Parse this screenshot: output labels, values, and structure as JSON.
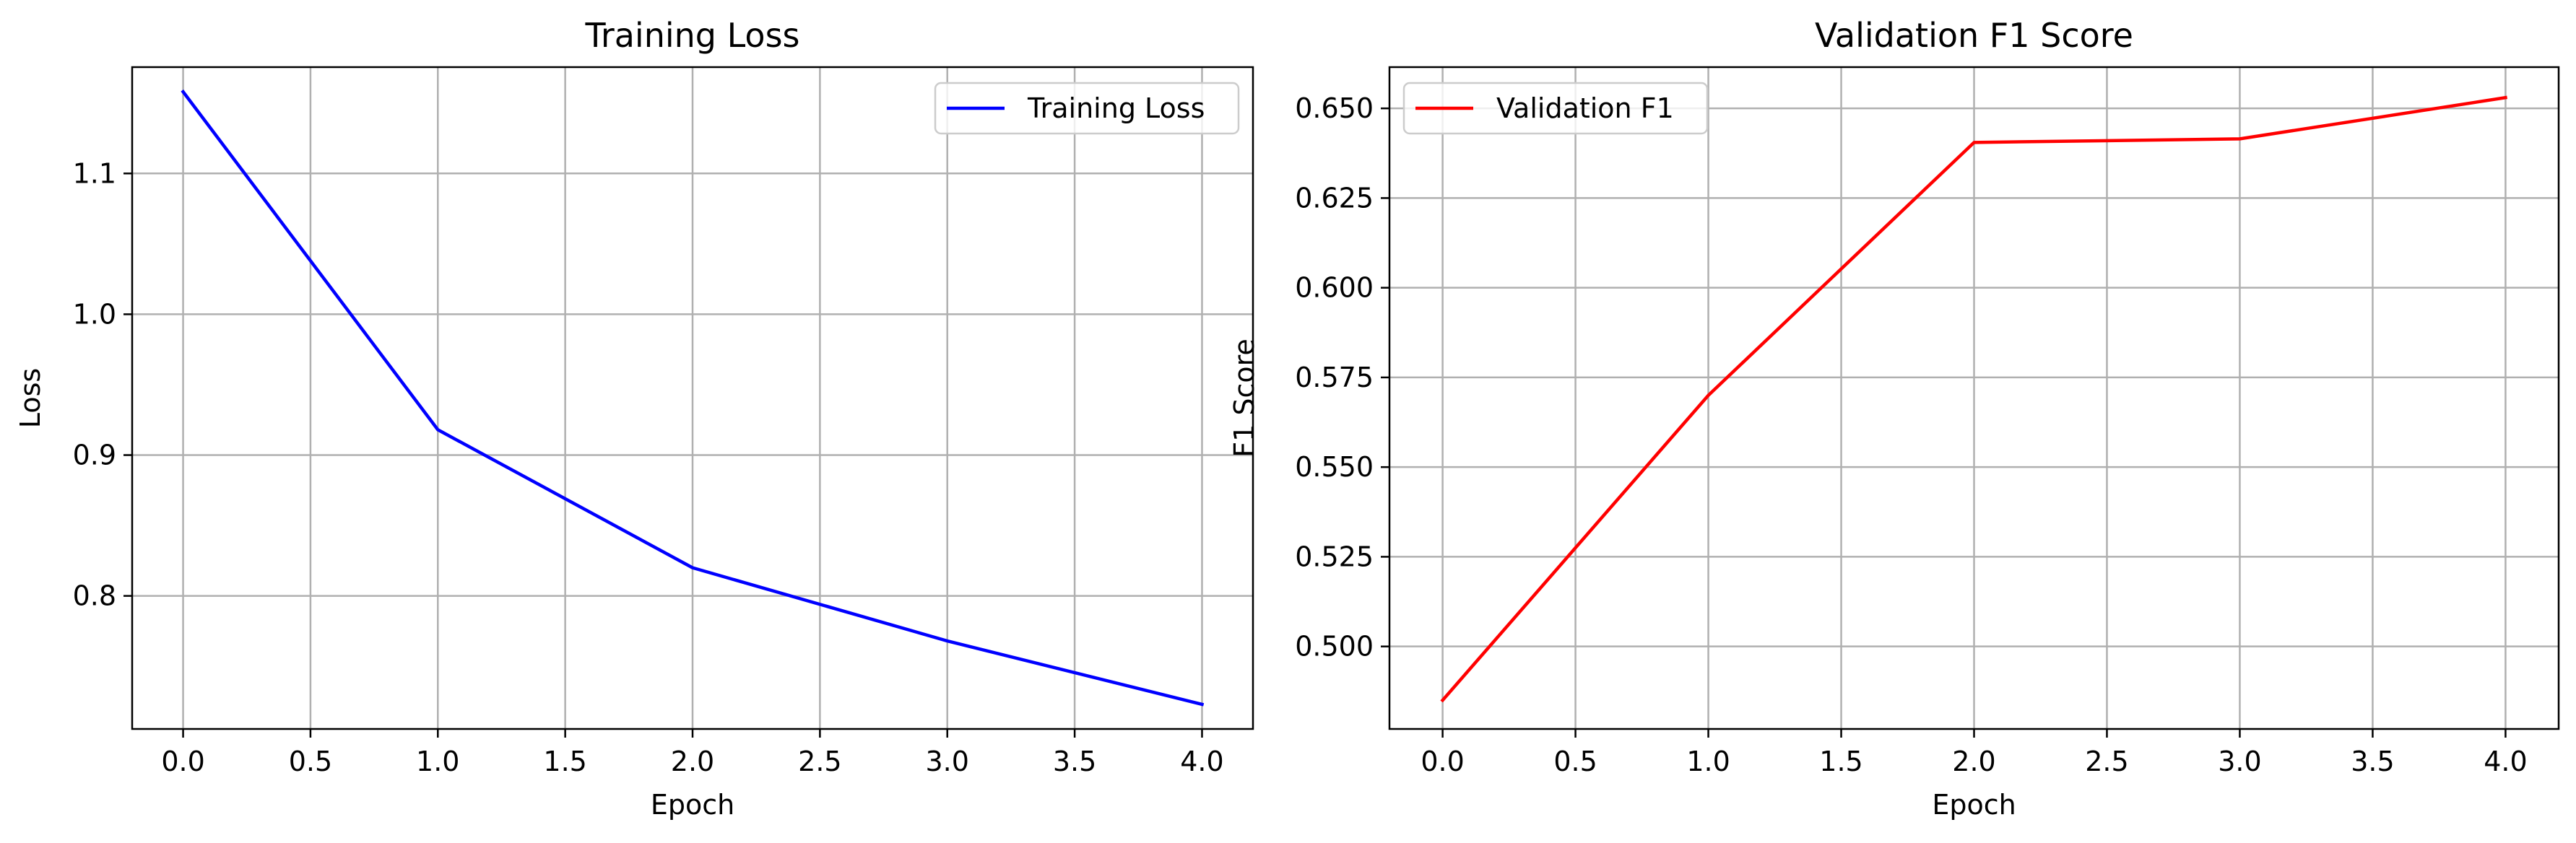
{
  "chart_data": [
    {
      "type": "line",
      "title": "Training Loss",
      "xlabel": "Epoch",
      "ylabel": "Loss",
      "x": [
        0,
        1,
        2,
        3,
        4
      ],
      "series": [
        {
          "name": "Training Loss",
          "color": "#0000ff",
          "values": [
            1.158,
            0.918,
            0.82,
            0.768,
            0.723
          ]
        }
      ],
      "xlim": [
        -0.2,
        4.2
      ],
      "ylim": [
        0.7055,
        1.1755
      ],
      "xticks": [
        0.0,
        0.5,
        1.0,
        1.5,
        2.0,
        2.5,
        3.0,
        3.5,
        4.0
      ],
      "xtick_labels": [
        "0.0",
        "0.5",
        "1.0",
        "1.5",
        "2.0",
        "2.5",
        "3.0",
        "3.5",
        "4.0"
      ],
      "yticks": [
        0.8,
        0.9,
        1.0,
        1.1
      ],
      "ytick_labels": [
        "0.8",
        "0.9",
        "1.0",
        "1.1"
      ],
      "grid": true,
      "legend": "upper right"
    },
    {
      "type": "line",
      "title": "Validation F1 Score",
      "xlabel": "Epoch",
      "ylabel": "F1 Score",
      "x": [
        0,
        1,
        2,
        3,
        4
      ],
      "series": [
        {
          "name": "Validation F1",
          "color": "#ff0000",
          "values": [
            0.485,
            0.57,
            0.6405,
            0.6415,
            0.653
          ]
        }
      ],
      "xlim": [
        -0.2,
        4.2
      ],
      "ylim": [
        0.477,
        0.6615
      ],
      "xticks": [
        0.0,
        0.5,
        1.0,
        1.5,
        2.0,
        2.5,
        3.0,
        3.5,
        4.0
      ],
      "xtick_labels": [
        "0.0",
        "0.5",
        "1.0",
        "1.5",
        "2.0",
        "2.5",
        "3.0",
        "3.5",
        "4.0"
      ],
      "yticks": [
        0.5,
        0.525,
        0.55,
        0.575,
        0.6,
        0.625,
        0.65
      ],
      "ytick_labels": [
        "0.500",
        "0.525",
        "0.550",
        "0.575",
        "0.600",
        "0.625",
        "0.650"
      ],
      "grid": true,
      "legend": "upper left"
    }
  ]
}
